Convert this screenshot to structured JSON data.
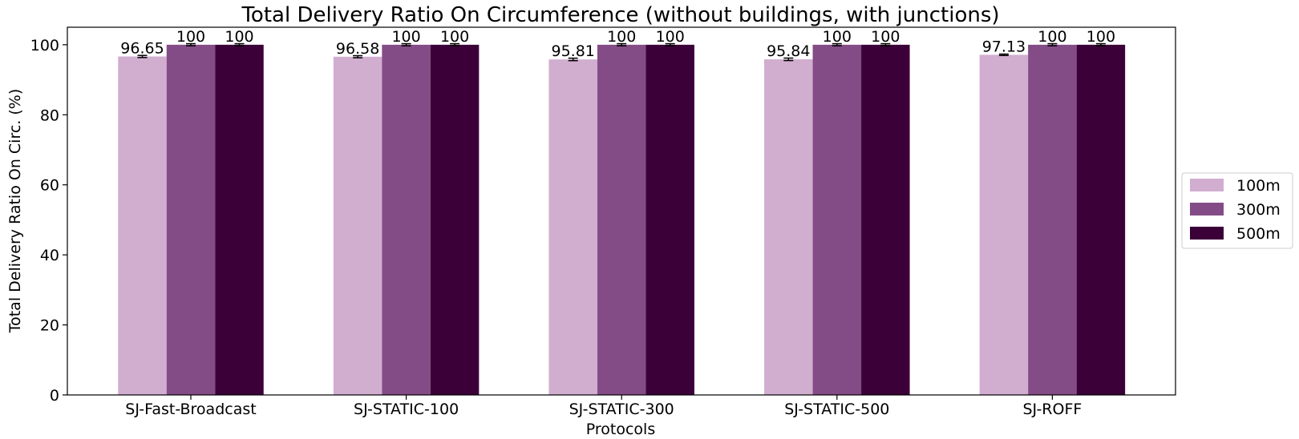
{
  "chart_data": {
    "type": "bar",
    "title": "Total Delivery Ratio On Circumference (without buildings, with junctions)",
    "xlabel": "Protocols",
    "ylabel": "Total Delivery Ratio On Circ. (%)",
    "ylim": [
      0,
      105
    ],
    "yticks": [
      0,
      20,
      40,
      60,
      80,
      100
    ],
    "grid": false,
    "legend_position": "right",
    "categories": [
      "SJ-Fast-Broadcast",
      "SJ-STATIC-100",
      "SJ-STATIC-300",
      "SJ-STATIC-500",
      "SJ-ROFF"
    ],
    "series": [
      {
        "name": "100m",
        "color": "#d1aed0",
        "values": [
          96.65,
          96.58,
          95.81,
          95.84,
          97.13
        ],
        "labels": [
          "96.65",
          "96.58",
          "95.81",
          "95.84",
          "97.13"
        ],
        "errors": [
          0.3,
          0.3,
          0.35,
          0.35,
          0.2
        ]
      },
      {
        "name": "300m",
        "color": "#844c87",
        "values": [
          100,
          100,
          100,
          100,
          100
        ],
        "labels": [
          "100",
          "100",
          "100",
          "100",
          "100"
        ],
        "errors": [
          0.3,
          0.3,
          0.3,
          0.3,
          0.3
        ]
      },
      {
        "name": "500m",
        "color": "#3c0039",
        "values": [
          100,
          100,
          100,
          100,
          100
        ],
        "labels": [
          "100",
          "100",
          "100",
          "100",
          "100"
        ],
        "errors": [
          0.3,
          0.3,
          0.3,
          0.3,
          0.3
        ]
      }
    ]
  }
}
